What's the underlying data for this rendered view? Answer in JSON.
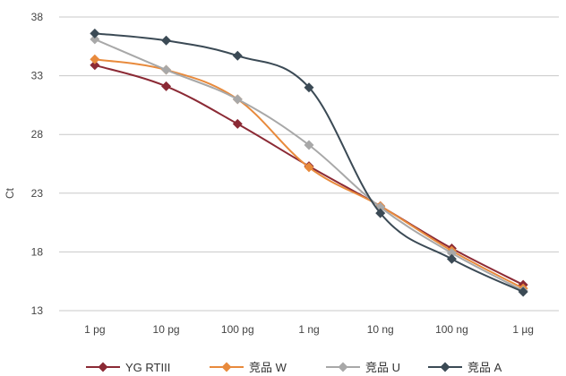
{
  "chart_data": {
    "type": "line",
    "title": "",
    "xlabel": "",
    "ylabel": "Ct",
    "categories": [
      "1 pg",
      "10 pg",
      "100 pg",
      "1 ng",
      "10 ng",
      "100 ng",
      "1 µg"
    ],
    "ylim": [
      13,
      38
    ],
    "yticks": [
      13,
      18,
      23,
      28,
      33,
      38
    ],
    "grid": true,
    "legend": "bottom",
    "series": [
      {
        "name": "YG RTIII",
        "color": "#8b2a35",
        "values": [
          33.9,
          32.1,
          28.9,
          25.3,
          21.9,
          18.3,
          15.2
        ]
      },
      {
        "name": "竞品 W",
        "color": "#e88a3c",
        "values": [
          34.4,
          33.5,
          31.0,
          25.2,
          21.9,
          18.1,
          14.9
        ]
      },
      {
        "name": "竞品 U",
        "color": "#a8a8a8",
        "values": [
          36.1,
          33.5,
          31.0,
          27.1,
          21.8,
          17.9,
          14.7
        ]
      },
      {
        "name": "竞品 A",
        "color": "#3b4a55",
        "values": [
          36.6,
          36.0,
          34.7,
          32.0,
          21.3,
          17.4,
          14.6
        ]
      }
    ]
  }
}
